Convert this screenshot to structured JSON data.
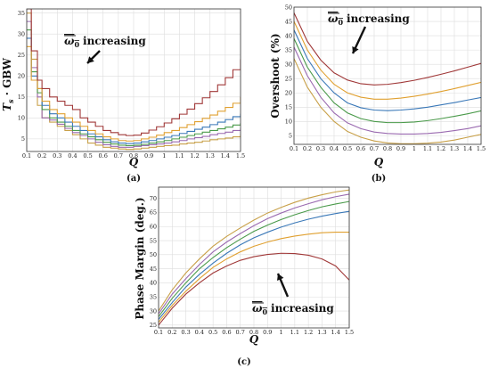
{
  "chart_data": [
    {
      "id": "a",
      "type": "line",
      "caption": "(a)",
      "xlabel": "Q",
      "ylabel_main": "T",
      "ylabel_sub": "s",
      "ylabel_rest": " · GBW",
      "annotation_label": "increasing",
      "annotation_symbol": "ω",
      "annotation_sub": "0",
      "xlim": [
        0.1,
        1.5
      ],
      "ylim": [
        2,
        36
      ],
      "x_ticks": [
        "0.1",
        "0.2",
        "0.3",
        "0.4",
        "0.5",
        "0.6",
        "0.7",
        "0.8",
        "0.9",
        "1",
        "1.1",
        "1.2",
        "1.3",
        "1.4",
        "1.5"
      ],
      "y_ticks": [
        "5",
        "10",
        "15",
        "20",
        "25",
        "30",
        "35"
      ],
      "grid": true,
      "series": [
        {
          "color": "#c8a048",
          "x": [
            0.1,
            0.13,
            0.17,
            0.2,
            0.25,
            0.3,
            0.35,
            0.4,
            0.45,
            0.5,
            0.55,
            0.6,
            0.65,
            0.7,
            0.75,
            0.8,
            0.85,
            0.9,
            0.95,
            1.0,
            1.05,
            1.1,
            1.15,
            1.2,
            1.25,
            1.3,
            1.35,
            1.4,
            1.45,
            1.5
          ],
          "y": [
            35,
            24,
            13,
            10,
            9,
            8,
            7,
            6,
            5,
            4,
            3.5,
            3,
            2.8,
            2.6,
            2.5,
            2.6,
            2.8,
            3,
            3.2,
            3.4,
            3.5,
            3.8,
            4,
            4.2,
            4.5,
            4.8,
            5,
            5.2,
            5.5,
            6
          ]
        },
        {
          "color": "#9a6ab0",
          "x": [
            0.1,
            0.13,
            0.17,
            0.2,
            0.25,
            0.3,
            0.35,
            0.4,
            0.45,
            0.5,
            0.55,
            0.6,
            0.65,
            0.7,
            0.75,
            0.8,
            0.85,
            0.9,
            0.95,
            1.0,
            1.05,
            1.1,
            1.15,
            1.2,
            1.25,
            1.3,
            1.35,
            1.4,
            1.45,
            1.5
          ],
          "y": [
            33,
            22,
            15,
            10,
            9.5,
            8.5,
            7.5,
            6.5,
            5.8,
            5,
            4.2,
            3.6,
            3.2,
            3,
            3,
            3.2,
            3.4,
            3.6,
            3.8,
            4,
            4.3,
            4.6,
            5,
            5.3,
            5.6,
            6,
            6.3,
            6.6,
            7,
            7.5
          ]
        },
        {
          "color": "#4a9a4a",
          "x": [
            0.1,
            0.13,
            0.17,
            0.2,
            0.25,
            0.3,
            0.35,
            0.4,
            0.45,
            0.5,
            0.55,
            0.6,
            0.65,
            0.7,
            0.75,
            0.8,
            0.85,
            0.9,
            0.95,
            1.0,
            1.05,
            1.1,
            1.15,
            1.2,
            1.25,
            1.3,
            1.35,
            1.4,
            1.45,
            1.5
          ],
          "y": [
            31,
            21,
            16,
            12,
            10,
            9,
            8,
            7,
            6.2,
            5.5,
            4.8,
            4.2,
            3.8,
            3.5,
            3.4,
            3.5,
            3.7,
            4,
            4.3,
            4.6,
            5,
            5.4,
            5.8,
            6.2,
            6.6,
            7,
            7.4,
            7.8,
            8.3,
            8.8
          ]
        },
        {
          "color": "#3a78b8",
          "x": [
            0.1,
            0.13,
            0.17,
            0.2,
            0.25,
            0.3,
            0.35,
            0.4,
            0.45,
            0.5,
            0.55,
            0.6,
            0.65,
            0.7,
            0.75,
            0.8,
            0.85,
            0.9,
            0.95,
            1.0,
            1.05,
            1.1,
            1.15,
            1.2,
            1.25,
            1.3,
            1.35,
            1.4,
            1.45,
            1.5
          ],
          "y": [
            29,
            20,
            17,
            13,
            11,
            10,
            9,
            8,
            7,
            6.2,
            5.5,
            4.8,
            4.3,
            4,
            3.9,
            4,
            4.3,
            4.6,
            5,
            5.4,
            5.8,
            6.3,
            6.8,
            7.3,
            7.8,
            8.4,
            9,
            9.6,
            10.3,
            11
          ]
        },
        {
          "color": "#e0a030",
          "x": [
            0.1,
            0.13,
            0.17,
            0.2,
            0.25,
            0.3,
            0.35,
            0.4,
            0.45,
            0.5,
            0.55,
            0.6,
            0.65,
            0.7,
            0.75,
            0.8,
            0.85,
            0.9,
            0.95,
            1.0,
            1.05,
            1.1,
            1.15,
            1.2,
            1.25,
            1.3,
            1.35,
            1.4,
            1.45,
            1.5
          ],
          "y": [
            27,
            19,
            17,
            14,
            12,
            11,
            10,
            9,
            8,
            7,
            6.2,
            5.5,
            5,
            4.6,
            4.5,
            4.6,
            5,
            5.4,
            5.9,
            6.5,
            7,
            7.7,
            8.4,
            9.1,
            9.9,
            10.7,
            11.6,
            12.5,
            13.5,
            15
          ]
        },
        {
          "color": "#a03838",
          "x": [
            0.1,
            0.13,
            0.17,
            0.2,
            0.25,
            0.3,
            0.35,
            0.4,
            0.45,
            0.5,
            0.55,
            0.6,
            0.65,
            0.7,
            0.75,
            0.8,
            0.85,
            0.9,
            0.95,
            1.0,
            1.05,
            1.1,
            1.15,
            1.2,
            1.25,
            1.3,
            1.35,
            1.4,
            1.45,
            1.5
          ],
          "y": [
            36,
            26,
            19,
            17,
            15,
            14,
            13,
            12,
            10,
            9,
            8,
            7,
            6.5,
            6,
            5.8,
            5.9,
            6.4,
            7.1,
            7.9,
            8.8,
            9.8,
            10.9,
            12.1,
            13.4,
            14.8,
            16.3,
            17.9,
            19.6,
            21.5,
            24
          ]
        }
      ]
    },
    {
      "id": "b",
      "type": "line",
      "caption": "(b)",
      "xlabel": "Q",
      "ylabel": "Overshoot (%)",
      "annotation_label": "increasing",
      "annotation_symbol": "ω",
      "annotation_sub": "0",
      "xlim": [
        0.1,
        1.5
      ],
      "ylim": [
        2,
        50
      ],
      "x_ticks": [
        "0.1",
        "0.2",
        "0.3",
        "0.4",
        "0.5",
        "0.6",
        "0.7",
        "0.8",
        "0.9",
        "1",
        "1.1",
        "1.2",
        "1.3",
        "1.4",
        "1.5"
      ],
      "y_ticks": [
        "5",
        "10",
        "15",
        "20",
        "25",
        "30",
        "35",
        "40",
        "45",
        "50"
      ],
      "grid": true,
      "series": [
        {
          "color": "#c8a048",
          "x": [
            0.1,
            0.2,
            0.3,
            0.4,
            0.5,
            0.6,
            0.7,
            0.8,
            0.9,
            1.0,
            1.1,
            1.2,
            1.3,
            1.4,
            1.5
          ],
          "y": [
            32,
            22,
            15,
            10,
            6.5,
            4.5,
            3.2,
            2.5,
            2.2,
            2.2,
            2.4,
            2.8,
            3.5,
            4.5,
            5.5
          ]
        },
        {
          "color": "#9a6ab0",
          "x": [
            0.1,
            0.2,
            0.3,
            0.4,
            0.5,
            0.6,
            0.7,
            0.8,
            0.9,
            1.0,
            1.1,
            1.2,
            1.3,
            1.4,
            1.5
          ],
          "y": [
            36,
            26,
            18.5,
            13,
            9.5,
            7.5,
            6.3,
            5.8,
            5.6,
            5.6,
            5.8,
            6.2,
            6.8,
            7.5,
            8.5
          ]
        },
        {
          "color": "#4a9a4a",
          "x": [
            0.1,
            0.2,
            0.3,
            0.4,
            0.5,
            0.6,
            0.7,
            0.8,
            0.9,
            1.0,
            1.1,
            1.2,
            1.3,
            1.4,
            1.5
          ],
          "y": [
            39,
            29,
            22,
            16.5,
            13,
            11,
            10,
            9.6,
            9.6,
            9.8,
            10.3,
            11,
            11.8,
            12.7,
            13.7
          ]
        },
        {
          "color": "#3a78b8",
          "x": [
            0.1,
            0.2,
            0.3,
            0.4,
            0.5,
            0.6,
            0.7,
            0.8,
            0.9,
            1.0,
            1.1,
            1.2,
            1.3,
            1.4,
            1.5
          ],
          "y": [
            42,
            32,
            25,
            20,
            16.5,
            14.8,
            14,
            13.8,
            14,
            14.4,
            15,
            15.8,
            16.6,
            17.5,
            18.4
          ]
        },
        {
          "color": "#e0a030",
          "x": [
            0.1,
            0.2,
            0.3,
            0.4,
            0.5,
            0.6,
            0.7,
            0.8,
            0.9,
            1.0,
            1.1,
            1.2,
            1.3,
            1.4,
            1.5
          ],
          "y": [
            45,
            35,
            28,
            23,
            20,
            18.5,
            17.8,
            17.8,
            18.2,
            18.8,
            19.6,
            20.5,
            21.5,
            22.6,
            23.7
          ]
        },
        {
          "color": "#a03838",
          "x": [
            0.1,
            0.2,
            0.3,
            0.4,
            0.5,
            0.6,
            0.7,
            0.8,
            0.9,
            1.0,
            1.1,
            1.2,
            1.3,
            1.4,
            1.5
          ],
          "y": [
            48,
            38,
            31.5,
            27,
            24.5,
            23.2,
            22.8,
            23,
            23.6,
            24.4,
            25.4,
            26.5,
            27.7,
            29,
            30.3
          ]
        }
      ]
    },
    {
      "id": "c",
      "type": "line",
      "caption": "(c)",
      "xlabel": "Q",
      "ylabel": "Phase Margin (deg.)",
      "annotation_label": "increasing",
      "annotation_symbol": "ω",
      "annotation_sub": "0",
      "xlim": [
        0.1,
        1.5
      ],
      "ylim": [
        24,
        74
      ],
      "x_ticks": [
        "0.1",
        "0.2",
        "0.3",
        "0.4",
        "0.5",
        "0.6",
        "0.7",
        "0.8",
        "0.9",
        "1",
        "1.1",
        "1.2",
        "1.3",
        "1.4",
        "1.5"
      ],
      "y_ticks": [
        "25",
        "30",
        "35",
        "40",
        "45",
        "50",
        "55",
        "60",
        "65",
        "70"
      ],
      "grid": true,
      "series": [
        {
          "color": "#a03838",
          "x": [
            0.1,
            0.2,
            0.3,
            0.4,
            0.5,
            0.6,
            0.7,
            0.8,
            0.9,
            1.0,
            1.1,
            1.2,
            1.3,
            1.4,
            1.5
          ],
          "y": [
            25,
            31,
            36,
            40,
            43.5,
            46,
            48,
            49.3,
            50.1,
            50.5,
            50.4,
            49.8,
            48.5,
            46,
            41
          ]
        },
        {
          "color": "#e0a030",
          "x": [
            0.1,
            0.2,
            0.3,
            0.4,
            0.5,
            0.6,
            0.7,
            0.8,
            0.9,
            1.0,
            1.1,
            1.2,
            1.3,
            1.4,
            1.5
          ],
          "y": [
            26,
            32,
            37,
            41.5,
            45.5,
            48.5,
            51,
            53,
            54.5,
            55.7,
            56.6,
            57.3,
            57.8,
            58,
            58
          ]
        },
        {
          "color": "#3a78b8",
          "x": [
            0.1,
            0.2,
            0.3,
            0.4,
            0.5,
            0.6,
            0.7,
            0.8,
            0.9,
            1.0,
            1.1,
            1.2,
            1.3,
            1.4,
            1.5
          ],
          "y": [
            27,
            33,
            38.5,
            43,
            47,
            50.5,
            53.5,
            56,
            58,
            59.8,
            61.3,
            62.6,
            63.7,
            64.6,
            65.4
          ]
        },
        {
          "color": "#4a9a4a",
          "x": [
            0.1,
            0.2,
            0.3,
            0.4,
            0.5,
            0.6,
            0.7,
            0.8,
            0.9,
            1.0,
            1.1,
            1.2,
            1.3,
            1.4,
            1.5
          ],
          "y": [
            28,
            34.5,
            40,
            45,
            49,
            52.5,
            55.5,
            58.3,
            60.5,
            62.5,
            64.2,
            65.7,
            67,
            68,
            68.9
          ]
        },
        {
          "color": "#9a6ab0",
          "x": [
            0.1,
            0.2,
            0.3,
            0.4,
            0.5,
            0.6,
            0.7,
            0.8,
            0.9,
            1.0,
            1.1,
            1.2,
            1.3,
            1.4,
            1.5
          ],
          "y": [
            29,
            36,
            41.5,
            46.5,
            51,
            54.5,
            57.5,
            60.3,
            62.8,
            64.8,
            66.6,
            68.1,
            69.5,
            70.6,
            71.5
          ]
        },
        {
          "color": "#c8a048",
          "x": [
            0.1,
            0.2,
            0.3,
            0.4,
            0.5,
            0.6,
            0.7,
            0.8,
            0.9,
            1.0,
            1.1,
            1.2,
            1.3,
            1.4,
            1.5
          ],
          "y": [
            30,
            37.5,
            43.5,
            48.5,
            53,
            56.5,
            59.5,
            62.3,
            64.8,
            66.8,
            68.6,
            70.1,
            71.3,
            72.3,
            73
          ]
        }
      ]
    }
  ]
}
